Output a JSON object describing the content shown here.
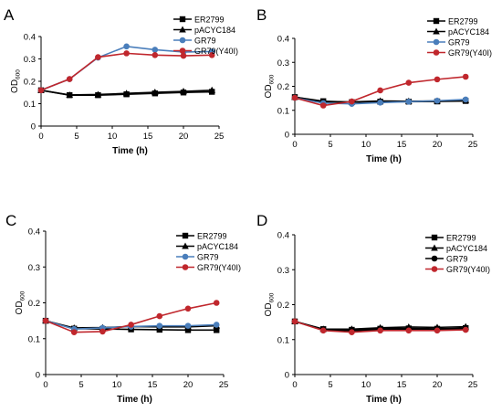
{
  "figure": {
    "panels": [
      {
        "letter": "A",
        "xlabel": "Time (h)",
        "ylabel_main": "OD",
        "ylabel_sub": "600",
        "xticks": [
          "0",
          "5",
          "10",
          "15",
          "20",
          "25"
        ],
        "yticks": [
          "0",
          "0.1",
          "0.2",
          "0.3",
          "0.4"
        ],
        "legend": [
          "ER2799",
          "pACYC184",
          "GR79",
          "GR79(Y40I)"
        ]
      },
      {
        "letter": "B",
        "xlabel": "Time (h)",
        "ylabel_main": "OD",
        "ylabel_sub": "600",
        "xticks": [
          "0",
          "5",
          "10",
          "15",
          "20",
          "25"
        ],
        "yticks": [
          "0",
          "0.1",
          "0.2",
          "0.3",
          "0.4"
        ],
        "legend": [
          "ER2799",
          "pACYC184",
          "GR79",
          "GR79(Y40I)"
        ]
      },
      {
        "letter": "C",
        "xlabel": "Time (h)",
        "ylabel_main": "OD",
        "ylabel_sub": "600",
        "xticks": [
          "0",
          "5",
          "10",
          "15",
          "20",
          "25"
        ],
        "yticks": [
          "0",
          "0.1",
          "0.2",
          "0.3",
          "0.4"
        ],
        "legend": [
          "ER2799",
          "pACYC184",
          "GR79",
          "GR79(Y40I)"
        ]
      },
      {
        "letter": "D",
        "xlabel": "Time (h)",
        "ylabel_main": "OD",
        "ylabel_sub": "600",
        "xticks": [
          "0",
          "5",
          "10",
          "15",
          "20",
          "25"
        ],
        "yticks": [
          "0",
          "0.1",
          "0.2",
          "0.3",
          "0.4"
        ],
        "legend": [
          "ER2799",
          "pACYC184",
          "GR79",
          "GR79(Y40I)"
        ]
      }
    ]
  },
  "chart_data": [
    {
      "type": "line",
      "panel": "A",
      "xlabel": "Time (h)",
      "ylabel": "OD600",
      "xlim": [
        0,
        25
      ],
      "ylim": [
        0,
        0.4
      ],
      "grid": false,
      "legend_position": "top-right",
      "x": [
        0,
        4,
        8,
        12,
        16,
        20,
        24
      ],
      "series": [
        {
          "name": "ER2799",
          "color": "#000000",
          "marker": "square",
          "values": [
            0.16,
            0.138,
            0.138,
            0.142,
            0.146,
            0.15,
            0.153
          ]
        },
        {
          "name": "pACYC184",
          "color": "#000000",
          "marker": "triangle",
          "values": [
            0.16,
            0.139,
            0.141,
            0.146,
            0.151,
            0.155,
            0.16
          ]
        },
        {
          "name": "GR79",
          "color": "#4a7ebb",
          "marker": "circle",
          "values": [
            0.16,
            0.21,
            0.306,
            0.356,
            0.341,
            0.331,
            0.333
          ]
        },
        {
          "name": "GR79(Y40I)",
          "color": "#c0272d",
          "marker": "circle",
          "values": [
            0.16,
            0.21,
            0.308,
            0.325,
            0.317,
            0.314,
            0.317
          ]
        }
      ]
    },
    {
      "type": "line",
      "panel": "B",
      "xlabel": "Time (h)",
      "ylabel": "OD600",
      "xlim": [
        0,
        25
      ],
      "ylim": [
        0,
        0.4
      ],
      "grid": false,
      "legend_position": "top-right",
      "x": [
        0,
        4,
        8,
        12,
        16,
        20,
        24
      ],
      "series": [
        {
          "name": "ER2799",
          "color": "#000000",
          "marker": "square",
          "values": [
            0.155,
            0.138,
            0.134,
            0.136,
            0.136,
            0.137,
            0.139
          ]
        },
        {
          "name": "pACYC184",
          "color": "#000000",
          "marker": "triangle",
          "values": [
            0.155,
            0.135,
            0.135,
            0.139,
            0.138,
            0.139,
            0.141
          ]
        },
        {
          "name": "GR79",
          "color": "#4a7ebb",
          "marker": "circle",
          "values": [
            0.152,
            0.13,
            0.127,
            0.132,
            0.136,
            0.14,
            0.145
          ]
        },
        {
          "name": "GR79(Y40I)",
          "color": "#c0272d",
          "marker": "circle",
          "values": [
            0.152,
            0.12,
            0.137,
            0.183,
            0.215,
            0.229,
            0.24
          ]
        }
      ]
    },
    {
      "type": "line",
      "panel": "C",
      "xlabel": "Time (h)",
      "ylabel": "OD600",
      "xlim": [
        0,
        25
      ],
      "ylim": [
        0,
        0.4
      ],
      "grid": false,
      "legend_position": "top-right",
      "x": [
        0,
        4,
        8,
        12,
        16,
        20,
        24
      ],
      "series": [
        {
          "name": "ER2799",
          "color": "#000000",
          "marker": "square",
          "values": [
            0.15,
            0.128,
            0.127,
            0.126,
            0.125,
            0.124,
            0.124
          ]
        },
        {
          "name": "pACYC184",
          "color": "#000000",
          "marker": "triangle",
          "values": [
            0.15,
            0.13,
            0.131,
            0.134,
            0.133,
            0.133,
            0.136
          ]
        },
        {
          "name": "GR79",
          "color": "#4a7ebb",
          "marker": "circle",
          "values": [
            0.15,
            0.127,
            0.13,
            0.134,
            0.136,
            0.136,
            0.139
          ]
        },
        {
          "name": "GR79(Y40I)",
          "color": "#c0272d",
          "marker": "circle",
          "values": [
            0.15,
            0.118,
            0.12,
            0.139,
            0.163,
            0.184,
            0.2
          ]
        }
      ]
    },
    {
      "type": "line",
      "panel": "D",
      "xlabel": "Time (h)",
      "ylabel": "OD600",
      "xlim": [
        0,
        25
      ],
      "ylim": [
        0,
        0.4
      ],
      "grid": false,
      "legend_position": "top-right",
      "x": [
        0,
        4,
        8,
        12,
        16,
        20,
        24
      ],
      "series": [
        {
          "name": "ER2799",
          "color": "#000000",
          "marker": "square",
          "values": [
            0.152,
            0.13,
            0.128,
            0.131,
            0.132,
            0.131,
            0.133
          ]
        },
        {
          "name": "pACYC184",
          "color": "#000000",
          "marker": "triangle",
          "values": [
            0.152,
            0.13,
            0.13,
            0.134,
            0.136,
            0.135,
            0.137
          ]
        },
        {
          "name": "GR79",
          "color": "#000000",
          "marker": "circle",
          "values": [
            0.152,
            0.128,
            0.125,
            0.129,
            0.129,
            0.128,
            0.13
          ]
        },
        {
          "name": "GR79(Y40I)",
          "color": "#c0272d",
          "marker": "circle",
          "values": [
            0.152,
            0.126,
            0.121,
            0.126,
            0.126,
            0.126,
            0.128
          ]
        }
      ]
    }
  ]
}
